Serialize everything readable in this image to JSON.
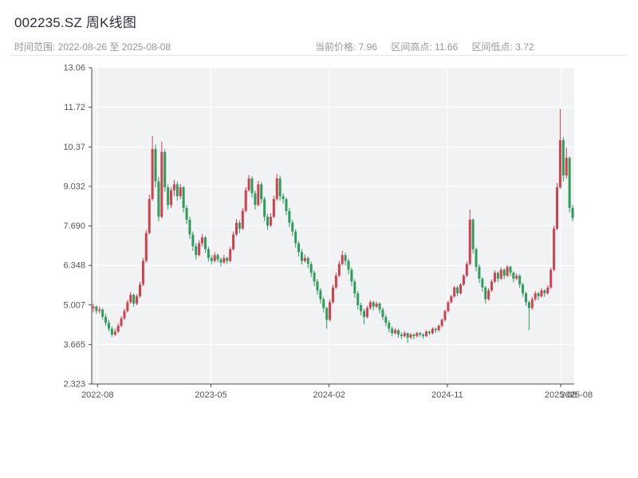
{
  "header": {
    "title": "002235.SZ 周K线图",
    "time_range": "时间范围: 2022-08-26 至 2025-08-08",
    "stats": [
      "当前价格: 7.96",
      "区间高点: 11.66",
      "区间低点: 3.72"
    ]
  },
  "chart_data": {
    "type": "candlestick",
    "title": "002235.SZ 周K线图",
    "symbol": "002235.SZ",
    "interval": "weekly",
    "date_start": "2022-08-26",
    "date_end": "2025-08-08",
    "current_price": 7.96,
    "range_high": 11.66,
    "range_low": 3.72,
    "ylim": [
      2.323,
      13.06
    ],
    "y_axis_ticks": [
      "13.06",
      "11.72",
      "10.37",
      "9.032",
      "7.690",
      "6.348",
      "5.007",
      "3.665",
      "2.323"
    ],
    "x_axis_ticks": [
      "2022-08",
      "2023-05",
      "2024-02",
      "2024-11",
      "2025-08"
    ],
    "x_axis_overlap_tick": "2025-08",
    "grid": true,
    "legend": "none",
    "up_color": "#cf4150",
    "down_color": "#2e9d5c",
    "plot_bg": "#f1f2f3",
    "ohlc": [
      [
        4.9,
        5.05,
        4.75,
        4.95
      ],
      [
        4.95,
        5.0,
        4.7,
        4.8
      ],
      [
        4.8,
        4.95,
        4.72,
        4.85
      ],
      [
        4.85,
        4.9,
        4.5,
        4.6
      ],
      [
        4.6,
        4.7,
        4.3,
        4.4
      ],
      [
        4.4,
        4.5,
        4.1,
        4.2
      ],
      [
        4.2,
        4.28,
        3.92,
        4.0
      ],
      [
        4.0,
        4.2,
        3.95,
        4.1
      ],
      [
        4.1,
        4.38,
        4.05,
        4.3
      ],
      [
        4.3,
        4.62,
        4.25,
        4.55
      ],
      [
        4.55,
        4.88,
        4.5,
        4.8
      ],
      [
        4.8,
        5.18,
        4.75,
        5.1
      ],
      [
        5.1,
        5.45,
        5.05,
        5.35
      ],
      [
        5.35,
        5.4,
        4.95,
        5.05
      ],
      [
        5.05,
        5.38,
        5.0,
        5.3
      ],
      [
        5.3,
        5.8,
        5.25,
        5.7
      ],
      [
        5.7,
        6.6,
        5.65,
        6.5
      ],
      [
        6.5,
        7.55,
        6.45,
        7.45
      ],
      [
        7.45,
        8.75,
        7.4,
        8.6
      ],
      [
        8.6,
        10.75,
        8.55,
        10.3
      ],
      [
        10.3,
        10.45,
        9.0,
        9.2
      ],
      [
        9.2,
        9.35,
        7.85,
        8.0
      ],
      [
        8.0,
        10.55,
        7.95,
        10.2
      ],
      [
        10.2,
        10.3,
        8.85,
        9.0
      ],
      [
        9.0,
        9.1,
        8.25,
        8.4
      ],
      [
        8.4,
        9.0,
        8.3,
        8.9
      ],
      [
        8.9,
        9.25,
        8.7,
        9.1
      ],
      [
        9.1,
        9.2,
        8.55,
        8.7
      ],
      [
        8.7,
        9.12,
        8.6,
        9.0
      ],
      [
        9.0,
        9.05,
        8.15,
        8.3
      ],
      [
        8.3,
        8.4,
        7.75,
        7.9
      ],
      [
        7.9,
        8.0,
        7.25,
        7.4
      ],
      [
        7.4,
        7.5,
        6.85,
        7.0
      ],
      [
        7.0,
        7.1,
        6.55,
        6.7
      ],
      [
        6.7,
        7.2,
        6.65,
        7.1
      ],
      [
        7.1,
        7.42,
        7.0,
        7.3
      ],
      [
        7.3,
        7.35,
        6.78,
        6.9
      ],
      [
        6.9,
        6.98,
        6.48,
        6.6
      ],
      [
        6.6,
        6.7,
        6.38,
        6.5
      ],
      [
        6.5,
        6.8,
        6.45,
        6.7
      ],
      [
        6.7,
        6.75,
        6.45,
        6.55
      ],
      [
        6.55,
        6.62,
        6.32,
        6.45
      ],
      [
        6.45,
        6.7,
        6.4,
        6.6
      ],
      [
        6.6,
        6.65,
        6.4,
        6.5
      ],
      [
        6.5,
        6.98,
        6.45,
        6.9
      ],
      [
        6.9,
        7.5,
        6.85,
        7.4
      ],
      [
        7.4,
        7.92,
        7.35,
        7.8
      ],
      [
        7.8,
        7.88,
        7.45,
        7.6
      ],
      [
        7.6,
        8.3,
        7.55,
        8.2
      ],
      [
        8.2,
        9.0,
        8.15,
        8.9
      ],
      [
        8.9,
        9.42,
        8.85,
        9.3
      ],
      [
        9.3,
        9.38,
        8.65,
        8.8
      ],
      [
        8.8,
        8.9,
        8.25,
        8.4
      ],
      [
        8.4,
        9.22,
        8.35,
        9.1
      ],
      [
        9.1,
        9.18,
        8.45,
        8.6
      ],
      [
        8.6,
        8.68,
        7.85,
        8.0
      ],
      [
        8.0,
        8.1,
        7.55,
        7.7
      ],
      [
        7.7,
        8.12,
        7.65,
        8.0
      ],
      [
        8.0,
        8.72,
        7.95,
        8.6
      ],
      [
        8.6,
        9.45,
        8.55,
        9.3
      ],
      [
        9.3,
        9.4,
        8.55,
        8.7
      ],
      [
        8.7,
        8.8,
        8.45,
        8.6
      ],
      [
        8.6,
        8.65,
        8.05,
        8.2
      ],
      [
        8.2,
        8.3,
        7.65,
        7.8
      ],
      [
        7.8,
        7.9,
        7.35,
        7.5
      ],
      [
        7.5,
        7.58,
        6.95,
        7.1
      ],
      [
        7.1,
        7.18,
        6.65,
        6.8
      ],
      [
        6.8,
        6.9,
        6.38,
        6.5
      ],
      [
        6.5,
        6.72,
        6.45,
        6.6
      ],
      [
        6.6,
        6.65,
        6.25,
        6.4
      ],
      [
        6.4,
        6.48,
        5.95,
        6.1
      ],
      [
        6.1,
        6.18,
        5.65,
        5.8
      ],
      [
        5.8,
        5.88,
        5.35,
        5.5
      ],
      [
        5.5,
        5.58,
        5.05,
        5.2
      ],
      [
        5.2,
        5.28,
        4.75,
        4.9
      ],
      [
        4.9,
        4.95,
        4.2,
        4.5
      ],
      [
        4.5,
        5.2,
        4.45,
        5.1
      ],
      [
        5.1,
        5.7,
        5.05,
        5.6
      ],
      [
        5.6,
        6.1,
        5.55,
        6.0
      ],
      [
        6.0,
        6.5,
        5.95,
        6.4
      ],
      [
        6.4,
        6.85,
        6.35,
        6.7
      ],
      [
        6.7,
        6.78,
        6.35,
        6.5
      ],
      [
        6.5,
        6.58,
        6.05,
        6.2
      ],
      [
        6.2,
        6.28,
        5.65,
        5.8
      ],
      [
        5.8,
        5.88,
        5.25,
        5.4
      ],
      [
        5.4,
        5.48,
        4.85,
        5.0
      ],
      [
        5.0,
        5.08,
        4.65,
        4.8
      ],
      [
        4.8,
        4.88,
        4.35,
        4.6
      ],
      [
        4.6,
        4.98,
        4.55,
        4.9
      ],
      [
        4.9,
        5.18,
        4.85,
        5.1
      ],
      [
        5.1,
        5.15,
        4.82,
        4.95
      ],
      [
        4.95,
        5.12,
        4.9,
        5.05
      ],
      [
        5.05,
        5.1,
        4.72,
        4.85
      ],
      [
        4.85,
        4.92,
        4.48,
        4.6
      ],
      [
        4.6,
        4.68,
        4.28,
        4.4
      ],
      [
        4.4,
        4.48,
        4.08,
        4.2
      ],
      [
        4.2,
        4.28,
        3.95,
        4.05
      ],
      [
        4.05,
        4.22,
        4.0,
        4.15
      ],
      [
        4.15,
        4.2,
        3.9,
        4.0
      ],
      [
        4.0,
        4.08,
        3.85,
        3.95
      ],
      [
        3.95,
        4.12,
        3.9,
        4.05
      ],
      [
        4.05,
        4.08,
        3.72,
        3.9
      ],
      [
        3.9,
        4.06,
        3.85,
        4.0
      ],
      [
        4.0,
        4.05,
        3.84,
        3.95
      ],
      [
        3.95,
        4.1,
        3.9,
        4.05
      ],
      [
        4.05,
        4.09,
        3.92,
        4.0
      ],
      [
        4.0,
        4.05,
        3.86,
        3.95
      ],
      [
        3.95,
        4.15,
        3.92,
        4.1
      ],
      [
        4.1,
        4.14,
        3.98,
        4.05
      ],
      [
        4.05,
        4.25,
        4.0,
        4.2
      ],
      [
        4.2,
        4.24,
        4.05,
        4.15
      ],
      [
        4.15,
        4.35,
        4.1,
        4.3
      ],
      [
        4.3,
        4.55,
        4.25,
        4.5
      ],
      [
        4.5,
        4.85,
        4.45,
        4.8
      ],
      [
        4.8,
        5.15,
        4.75,
        5.1
      ],
      [
        5.1,
        5.35,
        5.05,
        5.3
      ],
      [
        5.3,
        5.65,
        5.25,
        5.6
      ],
      [
        5.6,
        5.66,
        5.3,
        5.4
      ],
      [
        5.4,
        5.75,
        5.35,
        5.7
      ],
      [
        5.7,
        6.05,
        5.65,
        6.0
      ],
      [
        6.0,
        6.48,
        5.95,
        6.4
      ],
      [
        6.4,
        8.25,
        6.35,
        7.9
      ],
      [
        7.9,
        7.95,
        6.75,
        6.9
      ],
      [
        6.9,
        6.95,
        6.15,
        6.3
      ],
      [
        6.3,
        6.38,
        5.75,
        5.9
      ],
      [
        5.9,
        5.95,
        5.45,
        5.6
      ],
      [
        5.6,
        5.65,
        5.05,
        5.2
      ],
      [
        5.2,
        5.58,
        5.15,
        5.5
      ],
      [
        5.5,
        5.88,
        5.45,
        5.8
      ],
      [
        5.8,
        6.18,
        5.75,
        6.1
      ],
      [
        6.1,
        6.15,
        5.78,
        5.9
      ],
      [
        5.9,
        6.28,
        5.85,
        6.2
      ],
      [
        6.2,
        6.25,
        5.88,
        6.0
      ],
      [
        6.0,
        6.36,
        5.95,
        6.3
      ],
      [
        6.3,
        6.35,
        5.98,
        6.1
      ],
      [
        6.1,
        6.15,
        5.78,
        5.9
      ],
      [
        5.9,
        6.08,
        5.85,
        6.0
      ],
      [
        6.0,
        6.05,
        5.58,
        5.7
      ],
      [
        5.7,
        5.76,
        5.28,
        5.4
      ],
      [
        5.4,
        5.46,
        4.98,
        5.1
      ],
      [
        5.1,
        5.15,
        4.15,
        4.9
      ],
      [
        4.9,
        5.28,
        4.85,
        5.2
      ],
      [
        5.2,
        5.48,
        5.15,
        5.4
      ],
      [
        5.4,
        5.45,
        5.18,
        5.3
      ],
      [
        5.3,
        5.58,
        5.25,
        5.5
      ],
      [
        5.5,
        5.55,
        5.28,
        5.4
      ],
      [
        5.4,
        5.68,
        5.35,
        5.6
      ],
      [
        5.6,
        6.28,
        5.55,
        6.2
      ],
      [
        6.2,
        7.7,
        6.15,
        7.6
      ],
      [
        7.6,
        9.15,
        7.55,
        9.0
      ],
      [
        9.0,
        11.66,
        8.95,
        10.6
      ],
      [
        10.6,
        10.7,
        9.2,
        9.4
      ],
      [
        9.4,
        10.35,
        9.3,
        10.0
      ],
      [
        10.0,
        10.05,
        8.15,
        8.3
      ],
      [
        8.3,
        8.4,
        7.85,
        7.96
      ]
    ]
  }
}
